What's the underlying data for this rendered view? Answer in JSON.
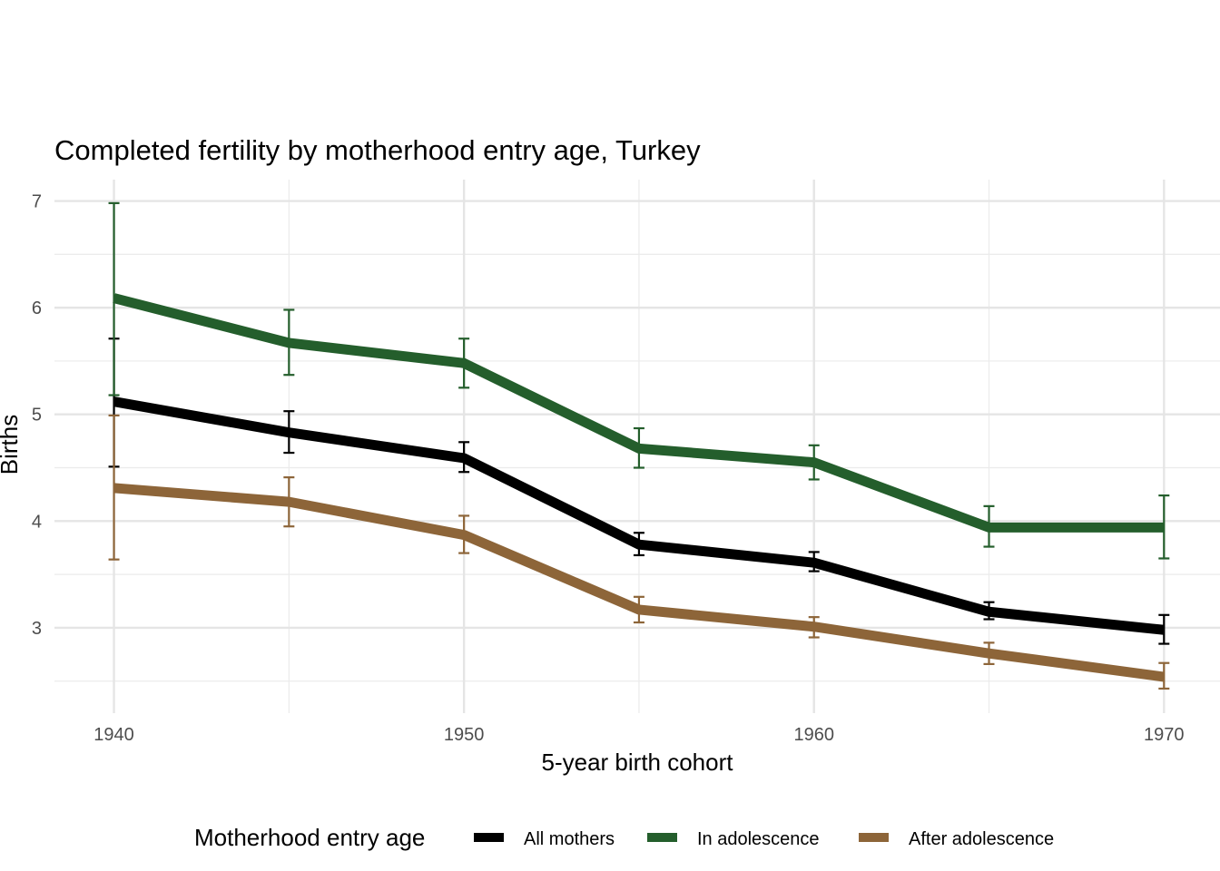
{
  "chart_data": {
    "type": "line",
    "title": "Completed fertility by motherhood entry age,  Turkey",
    "xlabel": "5-year birth cohort",
    "ylabel": "Births",
    "x": [
      1940,
      1945,
      1950,
      1955,
      1960,
      1965,
      1970
    ],
    "xticks": [
      1940,
      1950,
      1960,
      1970
    ],
    "xtick_labels": [
      "1940",
      "1950",
      "1960",
      "1970"
    ],
    "yticks": [
      3,
      4,
      5,
      6,
      7
    ],
    "ytick_labels": [
      "3",
      "4",
      "5",
      "6",
      "7"
    ],
    "xlim": [
      1938.3,
      1971.6
    ],
    "ylim": [
      2.2,
      7.2
    ],
    "grid": true,
    "legend": {
      "title": "Motherhood entry age",
      "position": "bottom"
    },
    "series": [
      {
        "name": "All mothers",
        "color": "#000000",
        "values": [
          5.12,
          4.83,
          4.59,
          3.78,
          3.61,
          3.15,
          2.98
        ],
        "lower": [
          4.51,
          4.64,
          4.46,
          3.68,
          3.53,
          3.08,
          2.85
        ],
        "upper": [
          5.71,
          5.03,
          4.74,
          3.89,
          3.71,
          3.24,
          3.12
        ]
      },
      {
        "name": "In adolescence",
        "color": "#245E2C",
        "values": [
          6.09,
          5.67,
          5.48,
          4.68,
          4.55,
          3.94,
          3.94
        ],
        "lower": [
          5.18,
          5.37,
          5.25,
          4.5,
          4.39,
          3.76,
          3.65
        ],
        "upper": [
          6.98,
          5.98,
          5.71,
          4.87,
          4.71,
          4.14,
          4.24
        ]
      },
      {
        "name": "After adolescence",
        "color": "#8D6539",
        "values": [
          4.31,
          4.18,
          3.87,
          3.17,
          3.01,
          2.76,
          2.54
        ],
        "lower": [
          3.64,
          3.95,
          3.7,
          3.05,
          2.91,
          2.66,
          2.43
        ],
        "upper": [
          4.99,
          4.41,
          4.05,
          3.29,
          3.1,
          2.86,
          2.67
        ]
      }
    ]
  }
}
